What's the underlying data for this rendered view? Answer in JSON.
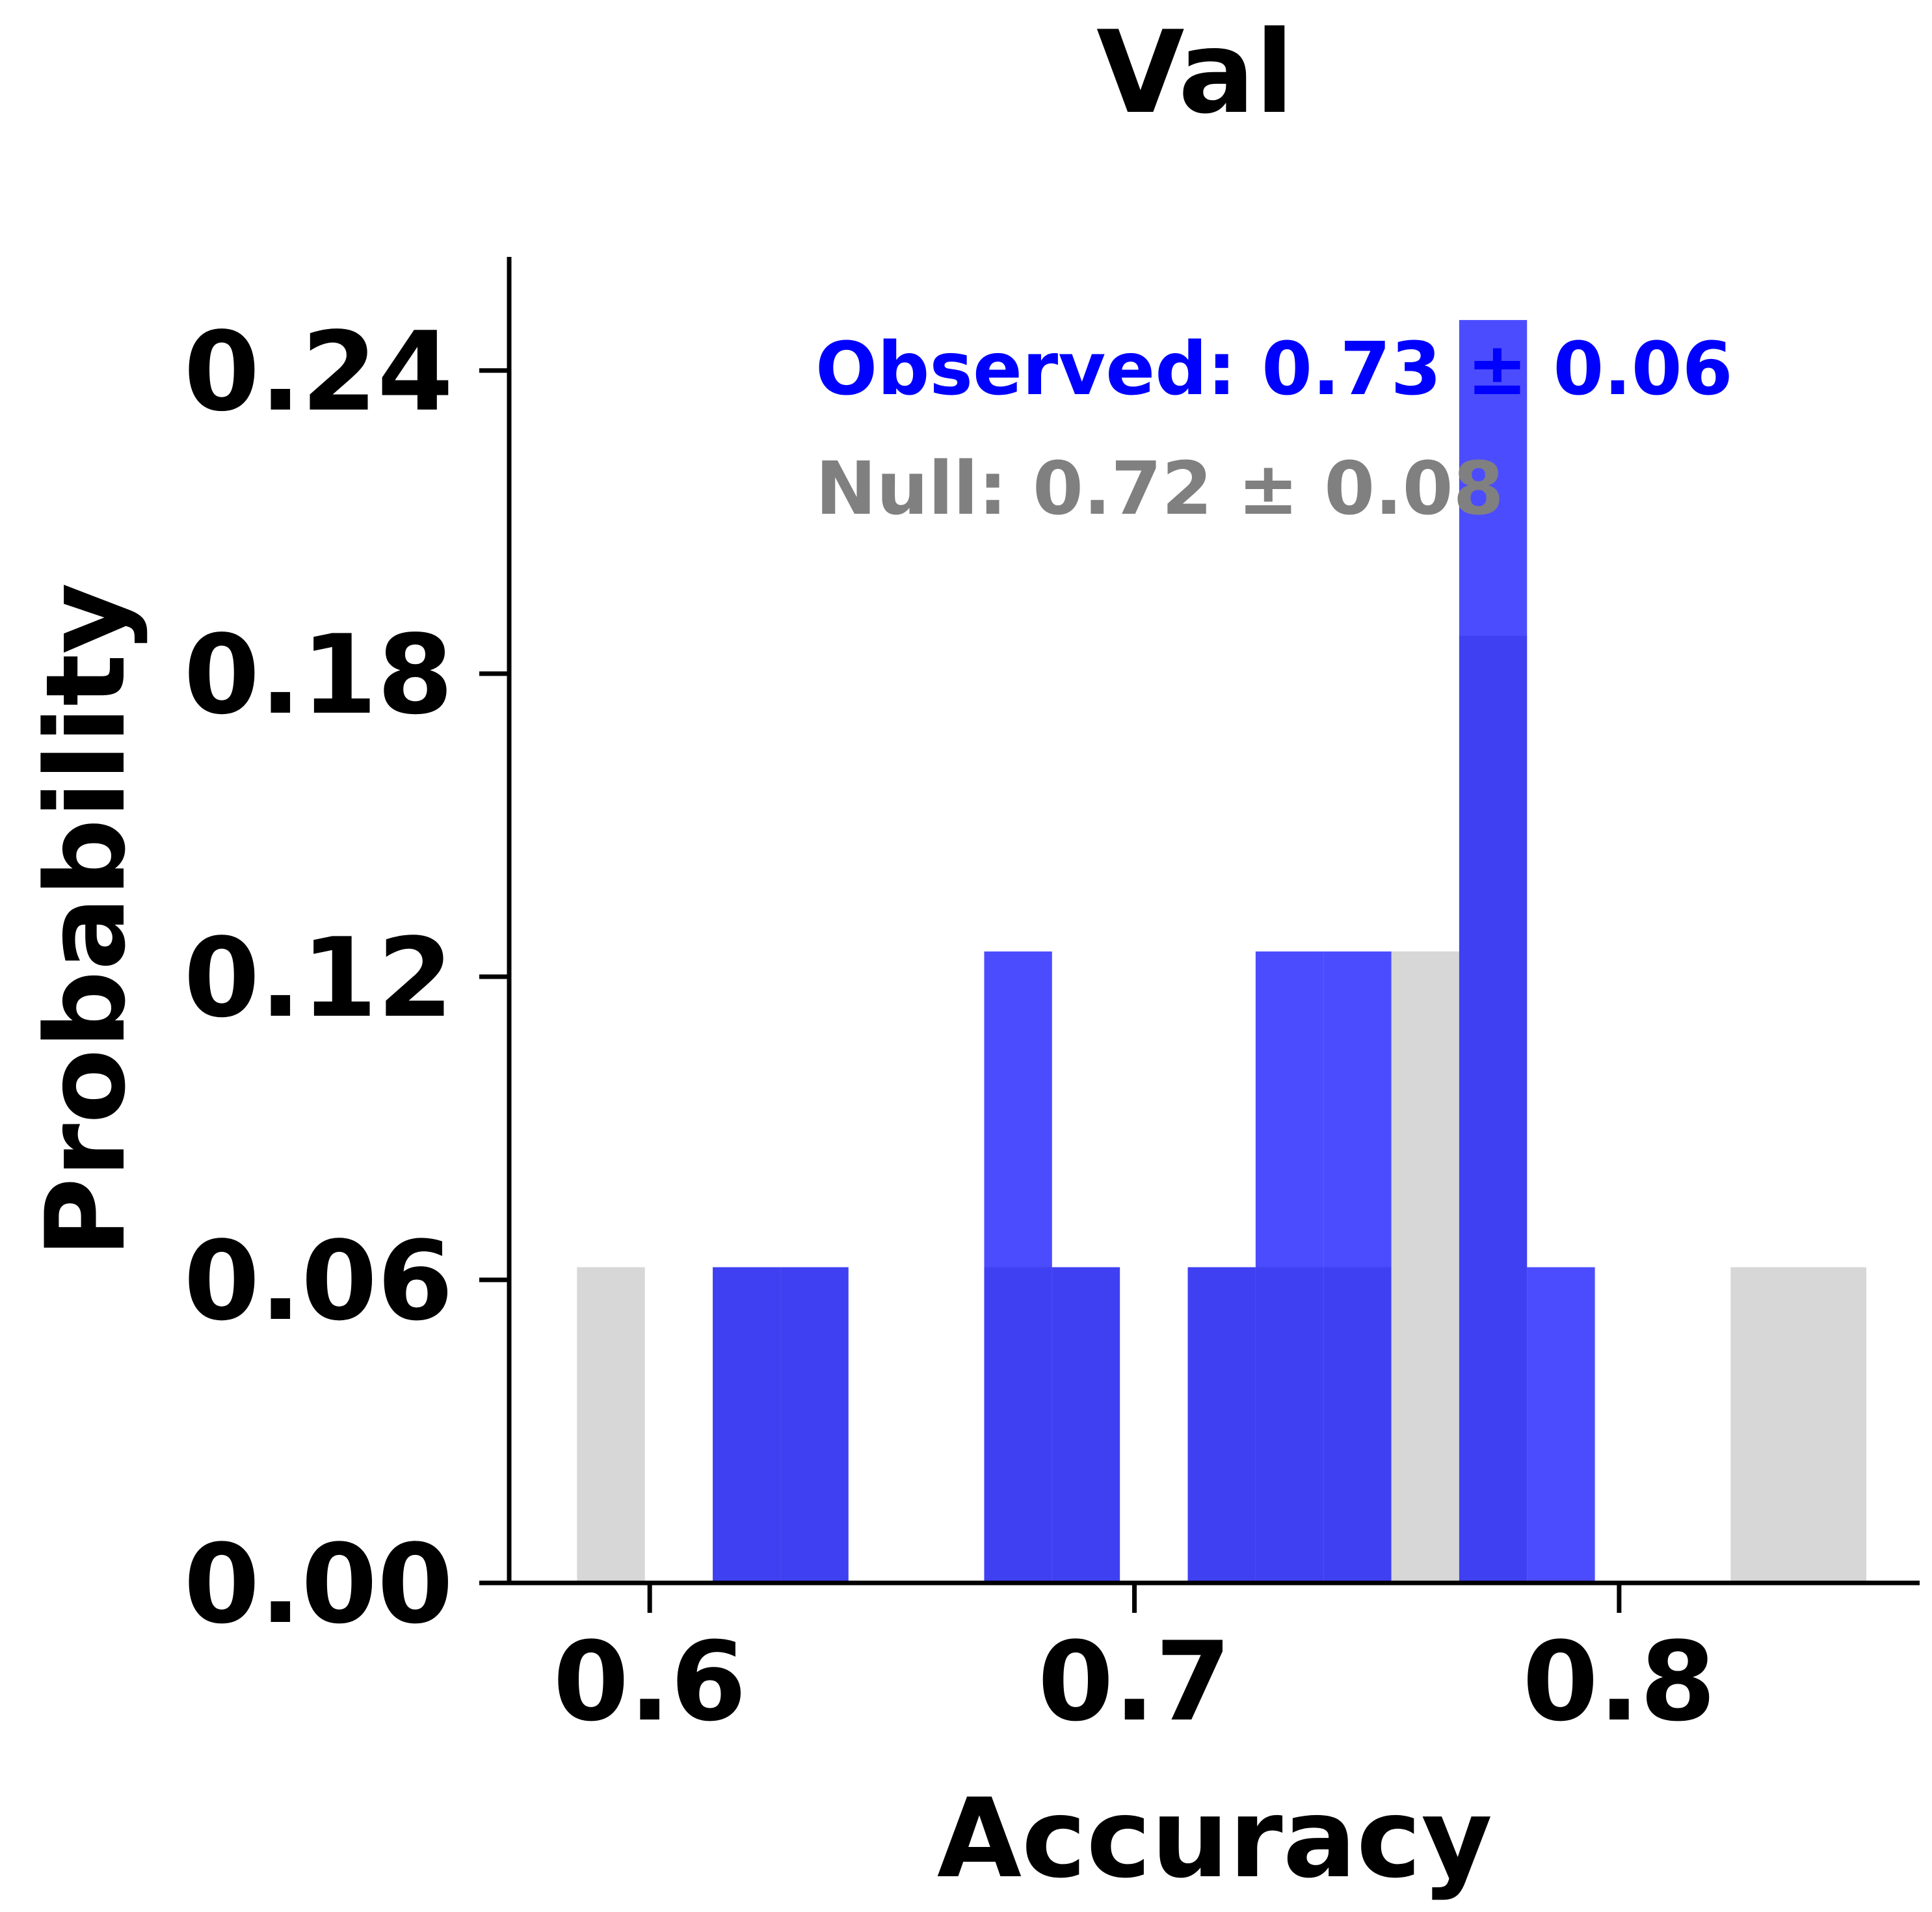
{
  "chart_data": {
    "type": "bar",
    "title": "Val",
    "xlabel": "Accuracy",
    "ylabel": "Probability",
    "xlim": [
      0.571,
      0.862
    ],
    "ylim": [
      0,
      0.2625
    ],
    "xticks": [
      "0.6",
      "0.7",
      "0.8"
    ],
    "xtick_values": [
      0.6,
      0.7,
      0.8
    ],
    "yticks": [
      "0.00",
      "0.06",
      "0.12",
      "0.18",
      "0.24"
    ],
    "ytick_values": [
      0.0,
      0.06,
      0.12,
      0.18,
      0.24
    ],
    "grid": false,
    "series": [
      {
        "color": "#d3d3d3",
        "opacity": 0.9,
        "bins": [
          {
            "x0": 0.585,
            "x1": 0.599,
            "value": 0.0625
          },
          {
            "x0": 0.613,
            "x1": 0.627,
            "value": 0.0625
          },
          {
            "x0": 0.627,
            "x1": 0.641,
            "value": 0.0625
          },
          {
            "x0": 0.669,
            "x1": 0.683,
            "value": 0.0625
          },
          {
            "x0": 0.683,
            "x1": 0.697,
            "value": 0.0625
          },
          {
            "x0": 0.711,
            "x1": 0.725,
            "value": 0.0625
          },
          {
            "x0": 0.725,
            "x1": 0.739,
            "value": 0.0625
          },
          {
            "x0": 0.739,
            "x1": 0.753,
            "value": 0.0625
          },
          {
            "x0": 0.753,
            "x1": 0.767,
            "value": 0.125
          },
          {
            "x0": 0.767,
            "x1": 0.781,
            "value": 0.1875
          },
          {
            "x0": 0.823,
            "x1": 0.851,
            "value": 0.0625
          }
        ]
      },
      {
        "color": "#0000ff",
        "opacity": 0.7,
        "bins": [
          {
            "x0": 0.613,
            "x1": 0.627,
            "value": 0.0625
          },
          {
            "x0": 0.627,
            "x1": 0.641,
            "value": 0.0625
          },
          {
            "x0": 0.669,
            "x1": 0.683,
            "value": 0.125
          },
          {
            "x0": 0.683,
            "x1": 0.697,
            "value": 0.0625
          },
          {
            "x0": 0.711,
            "x1": 0.725,
            "value": 0.0625
          },
          {
            "x0": 0.725,
            "x1": 0.739,
            "value": 0.125
          },
          {
            "x0": 0.739,
            "x1": 0.753,
            "value": 0.125
          },
          {
            "x0": 0.767,
            "x1": 0.781,
            "value": 0.25
          },
          {
            "x0": 0.781,
            "x1": 0.795,
            "value": 0.0625
          }
        ]
      }
    ],
    "annotations": [
      {
        "text": "Observed: 0.73 ± 0.06",
        "color": "#0000ff"
      },
      {
        "text": "Null: 0.72 ± 0.08",
        "color": "#808080"
      }
    ]
  }
}
